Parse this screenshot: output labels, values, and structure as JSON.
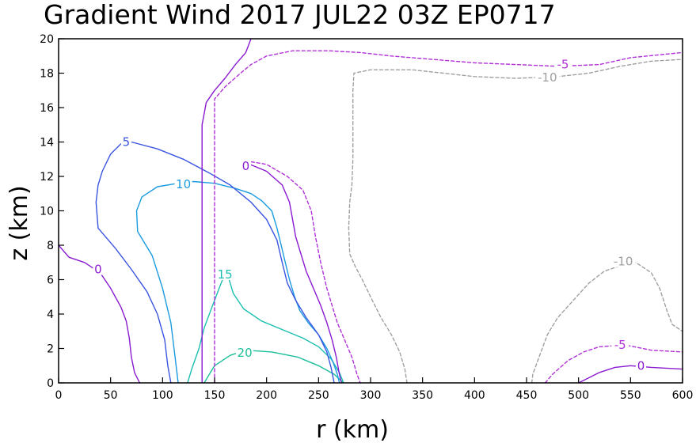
{
  "chart_data": {
    "type": "contour",
    "title": "Gradient Wind 2017 JUL22 03Z  EP0717",
    "xlabel": "r (km)",
    "ylabel": "z (km)",
    "xlim": [
      0,
      600
    ],
    "ylim": [
      0,
      20
    ],
    "xticks": [
      0,
      50,
      100,
      150,
      200,
      250,
      300,
      350,
      400,
      450,
      500,
      550,
      600
    ],
    "yticks": [
      0,
      2,
      4,
      6,
      8,
      10,
      12,
      14,
      16,
      18,
      20
    ],
    "contours": [
      {
        "level": 20,
        "color": "#1bbf9a",
        "dash": false,
        "points": [
          [
            140,
            0
          ],
          [
            145,
            0.5
          ],
          [
            150,
            1
          ],
          [
            165,
            1.6
          ],
          [
            180,
            1.9
          ],
          [
            205,
            1.8
          ],
          [
            230,
            1.5
          ],
          [
            250,
            1.0
          ],
          [
            265,
            0.5
          ],
          [
            274,
            0
          ]
        ],
        "labels": [
          {
            "text": "20",
            "x": 179,
            "y": 1.75
          }
        ]
      },
      {
        "level": 15,
        "color": "#1bbfb0",
        "dash": false,
        "points": [
          [
            124,
            0
          ],
          [
            128,
            0.8
          ],
          [
            135,
            2.0
          ],
          [
            140,
            3.2
          ],
          [
            145,
            4.0
          ],
          [
            150,
            4.8
          ],
          [
            155,
            5.6
          ],
          [
            159,
            6.2
          ],
          [
            163,
            6.2
          ],
          [
            168,
            5.2
          ],
          [
            178,
            4.3
          ],
          [
            195,
            3.6
          ],
          [
            215,
            3.1
          ],
          [
            235,
            2.6
          ],
          [
            250,
            2.1
          ],
          [
            262,
            1.4
          ],
          [
            270,
            0.6
          ],
          [
            274,
            0
          ]
        ],
        "labels": [
          {
            "text": "15",
            "x": 160,
            "y": 6.3
          }
        ]
      },
      {
        "level": 10,
        "color": "#1a9be0",
        "dash": false,
        "points": [
          [
            115,
            0
          ],
          [
            112,
            1.5
          ],
          [
            108,
            3.5
          ],
          [
            100,
            5.5
          ],
          [
            90,
            7.4
          ],
          [
            76,
            8.8
          ],
          [
            75,
            10.0
          ],
          [
            80,
            10.8
          ],
          [
            95,
            11.4
          ],
          [
            115,
            11.6
          ],
          [
            130,
            11.7
          ],
          [
            150,
            11.6
          ],
          [
            170,
            11.3
          ],
          [
            185,
            11.0
          ],
          [
            195,
            10.6
          ],
          [
            205,
            10.0
          ],
          [
            210,
            9.0
          ],
          [
            214,
            8.0
          ],
          [
            218,
            7.0
          ],
          [
            222,
            6.0
          ],
          [
            227,
            5.0
          ],
          [
            232,
            4.2
          ],
          [
            240,
            3.5
          ],
          [
            250,
            2.8
          ],
          [
            258,
            2.0
          ],
          [
            264,
            1.2
          ],
          [
            268,
            0.5
          ],
          [
            270,
            0
          ]
        ],
        "labels": [
          {
            "text": "10",
            "x": 120,
            "y": 11.55
          }
        ]
      },
      {
        "level": 5,
        "color": "#3a55e0",
        "dash": false,
        "points": [
          [
            108,
            0
          ],
          [
            105,
            1.0
          ],
          [
            102,
            2.5
          ],
          [
            95,
            4.0
          ],
          [
            85,
            5.3
          ],
          [
            70,
            6.6
          ],
          [
            55,
            7.8
          ],
          [
            38,
            9.0
          ],
          [
            36,
            10.5
          ],
          [
            38,
            11.5
          ],
          [
            42,
            12.3
          ],
          [
            50,
            13.3
          ],
          [
            60,
            13.9
          ],
          [
            70,
            14.0
          ],
          [
            95,
            13.6
          ],
          [
            120,
            13.0
          ],
          [
            145,
            12.2
          ],
          [
            165,
            11.5
          ],
          [
            185,
            10.5
          ],
          [
            200,
            9.5
          ],
          [
            210,
            8.3
          ],
          [
            215,
            7.0
          ],
          [
            220,
            5.8
          ],
          [
            228,
            4.8
          ],
          [
            238,
            3.8
          ],
          [
            250,
            2.8
          ],
          [
            258,
            1.8
          ],
          [
            262,
            0.9
          ],
          [
            265,
            0
          ]
        ],
        "labels": [
          {
            "text": "5",
            "x": 65,
            "y": 14.0
          }
        ]
      },
      {
        "level": 0,
        "color": "#8a1ad0",
        "dash": false,
        "points": [
          [
            0,
            8.0
          ],
          [
            10,
            7.3
          ],
          [
            25,
            7.0
          ],
          [
            40,
            6.4
          ],
          [
            50,
            5.5
          ],
          [
            60,
            4.4
          ],
          [
            65,
            3.6
          ],
          [
            68,
            2.6
          ],
          [
            70,
            1.5
          ],
          [
            73,
            0.6
          ],
          [
            78,
            0
          ],
          [
            null,
            null
          ],
          [
            138,
            0
          ],
          [
            138,
            0.5
          ],
          [
            138,
            15.0
          ],
          [
            142,
            16.3
          ],
          [
            150,
            17.0
          ],
          [
            160,
            17.7
          ],
          [
            170,
            18.5
          ],
          [
            180,
            19.2
          ],
          [
            185,
            20
          ],
          [
            null,
            null
          ],
          [
            180,
            12.8
          ],
          [
            200,
            12.3
          ],
          [
            215,
            11.5
          ],
          [
            222,
            10.5
          ],
          [
            225,
            9.5
          ],
          [
            228,
            8.5
          ],
          [
            233,
            7.5
          ],
          [
            238,
            6.5
          ],
          [
            245,
            5.5
          ],
          [
            252,
            4.5
          ],
          [
            258,
            3.5
          ],
          [
            263,
            2.5
          ],
          [
            267,
            1.5
          ],
          [
            270,
            0.5
          ],
          [
            272,
            0
          ],
          [
            null,
            null
          ],
          [
            500,
            0
          ],
          [
            510,
            0.3
          ],
          [
            520,
            0.6
          ],
          [
            535,
            0.9
          ],
          [
            550,
            1.0
          ],
          [
            570,
            0.9
          ],
          [
            600,
            0.8
          ]
        ],
        "labels": [
          {
            "text": "0",
            "x": 38,
            "y": 6.6
          },
          {
            "text": "0",
            "x": 180,
            "y": 12.6
          },
          {
            "text": "0",
            "x": 560,
            "y": 1.0
          }
        ]
      },
      {
        "level": -5,
        "color": "#b030d8",
        "dash": true,
        "points": [
          [
            150,
            0
          ],
          [
            150,
            15.0
          ],
          [
            150,
            16.5
          ],
          [
            160,
            17.2
          ],
          [
            175,
            18.0
          ],
          [
            185,
            18.5
          ],
          [
            200,
            19.0
          ],
          [
            225,
            19.3
          ],
          [
            260,
            19.3
          ],
          [
            290,
            19.2
          ],
          [
            320,
            19.0
          ],
          [
            360,
            18.8
          ],
          [
            400,
            18.6
          ],
          [
            440,
            18.5
          ],
          [
            480,
            18.4
          ],
          [
            520,
            18.5
          ],
          [
            550,
            18.9
          ],
          [
            600,
            19.2
          ],
          [
            null,
            null
          ],
          [
            180,
            12.9
          ],
          [
            200,
            12.7
          ],
          [
            220,
            12.0
          ],
          [
            235,
            11.2
          ],
          [
            243,
            10.0
          ],
          [
            247,
            8.5
          ],
          [
            252,
            7.0
          ],
          [
            258,
            5.5
          ],
          [
            263,
            4.5
          ],
          [
            268,
            3.5
          ],
          [
            275,
            2.5
          ],
          [
            282,
            1.5
          ],
          [
            287,
            0.5
          ],
          [
            290,
            0
          ],
          [
            null,
            null
          ],
          [
            468,
            0
          ],
          [
            475,
            0.5
          ],
          [
            490,
            1.3
          ],
          [
            505,
            1.8
          ],
          [
            520,
            2.1
          ],
          [
            545,
            2.2
          ],
          [
            570,
            1.9
          ],
          [
            600,
            1.8
          ]
        ],
        "labels": [
          {
            "text": "-5",
            "x": 485,
            "y": 18.5
          },
          {
            "text": "-5",
            "x": 540,
            "y": 2.2
          }
        ]
      },
      {
        "level": -10,
        "color": "#a0a0a0",
        "dash": true,
        "points": [
          [
            335,
            0
          ],
          [
            333,
            0.8
          ],
          [
            328,
            1.8
          ],
          [
            320,
            2.8
          ],
          [
            310,
            3.8
          ],
          [
            300,
            5.0
          ],
          [
            292,
            6.0
          ],
          [
            285,
            6.8
          ],
          [
            280,
            7.5
          ],
          [
            279,
            9.0
          ],
          [
            280,
            10.5
          ],
          [
            282,
            11.5
          ],
          [
            283,
            13.0
          ],
          [
            283,
            15.0
          ],
          [
            283,
            17.0
          ],
          [
            284,
            18.0
          ],
          [
            300,
            18.2
          ],
          [
            340,
            18.2
          ],
          [
            370,
            18.0
          ],
          [
            400,
            17.8
          ],
          [
            440,
            17.7
          ],
          [
            480,
            17.8
          ],
          [
            510,
            18.0
          ],
          [
            540,
            18.4
          ],
          [
            570,
            18.7
          ],
          [
            600,
            18.8
          ],
          [
            null,
            null
          ],
          [
            455,
            0
          ],
          [
            456,
            0.5
          ],
          [
            462,
            1.5
          ],
          [
            470,
            2.8
          ],
          [
            480,
            3.8
          ],
          [
            495,
            4.8
          ],
          [
            510,
            5.8
          ],
          [
            525,
            6.5
          ],
          [
            540,
            6.8
          ],
          [
            555,
            7.0
          ],
          [
            570,
            6.4
          ],
          [
            578,
            5.5
          ],
          [
            585,
            4.2
          ],
          [
            590,
            3.4
          ],
          [
            600,
            3.0
          ]
        ],
        "labels": [
          {
            "text": "-10",
            "x": 470,
            "y": 17.75
          },
          {
            "text": "-10",
            "x": 543,
            "y": 7.05
          }
        ]
      }
    ]
  }
}
